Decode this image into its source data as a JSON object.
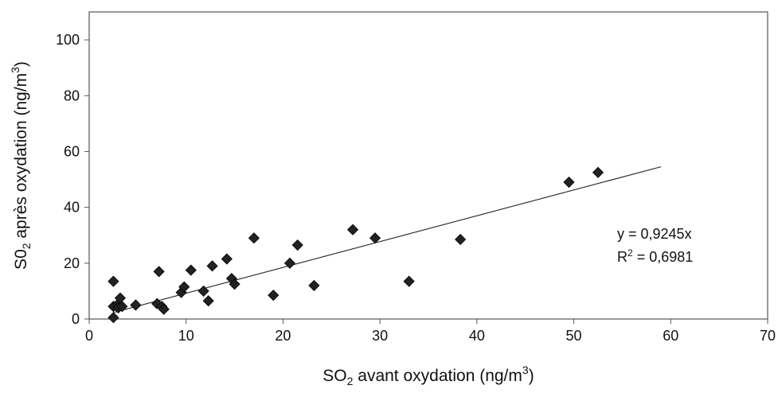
{
  "chart_data": {
    "type": "scatter",
    "xlabel": {
      "pre": "SO",
      "sub": "2",
      "mid": " avant oxydation (ng/m",
      "sup": "3",
      "post": ")"
    },
    "ylabel": {
      "pre": "S0",
      "sub": "2",
      "mid": " après oxydation (ng/m",
      "sup": "3",
      "post": ")"
    },
    "xlim": [
      0,
      70
    ],
    "ylim": [
      0,
      110
    ],
    "xticks": [
      0,
      10,
      20,
      30,
      40,
      50,
      60,
      70
    ],
    "yticks": [
      0,
      20,
      40,
      60,
      80,
      100
    ],
    "grid": false,
    "marker": "diamond",
    "marker_color": "#222222",
    "points": [
      {
        "x": 2.5,
        "y": 13.5
      },
      {
        "x": 2.5,
        "y": 4.5
      },
      {
        "x": 2.5,
        "y": 0.5
      },
      {
        "x": 3.0,
        "y": 5.5
      },
      {
        "x": 3.0,
        "y": 4.0
      },
      {
        "x": 3.2,
        "y": 7.5
      },
      {
        "x": 3.4,
        "y": 4.5
      },
      {
        "x": 4.8,
        "y": 5.0
      },
      {
        "x": 7.0,
        "y": 5.5
      },
      {
        "x": 7.2,
        "y": 17.0
      },
      {
        "x": 7.5,
        "y": 4.5
      },
      {
        "x": 7.7,
        "y": 3.5
      },
      {
        "x": 9.5,
        "y": 9.5
      },
      {
        "x": 9.8,
        "y": 11.5
      },
      {
        "x": 10.5,
        "y": 17.5
      },
      {
        "x": 11.8,
        "y": 10.0
      },
      {
        "x": 12.3,
        "y": 6.5
      },
      {
        "x": 12.7,
        "y": 19.0
      },
      {
        "x": 14.2,
        "y": 21.5
      },
      {
        "x": 14.7,
        "y": 14.5
      },
      {
        "x": 15.0,
        "y": 12.5
      },
      {
        "x": 17.0,
        "y": 29.0
      },
      {
        "x": 19.0,
        "y": 8.5
      },
      {
        "x": 20.7,
        "y": 20.0
      },
      {
        "x": 21.5,
        "y": 26.5
      },
      {
        "x": 23.2,
        "y": 12.0
      },
      {
        "x": 27.2,
        "y": 32.0
      },
      {
        "x": 29.5,
        "y": 29.0
      },
      {
        "x": 33.0,
        "y": 13.5
      },
      {
        "x": 38.3,
        "y": 28.5
      },
      {
        "x": 49.5,
        "y": 49.0
      },
      {
        "x": 52.5,
        "y": 52.5
      }
    ],
    "trendline": {
      "type": "linear",
      "slope": 0.9245,
      "intercept": 0,
      "x_range": [
        2.5,
        59
      ]
    },
    "annotations": {
      "equation": "y = 0,9245x",
      "r2_pre": "R",
      "r2_sup": "2",
      "r2_post": " = 0,6981"
    }
  }
}
